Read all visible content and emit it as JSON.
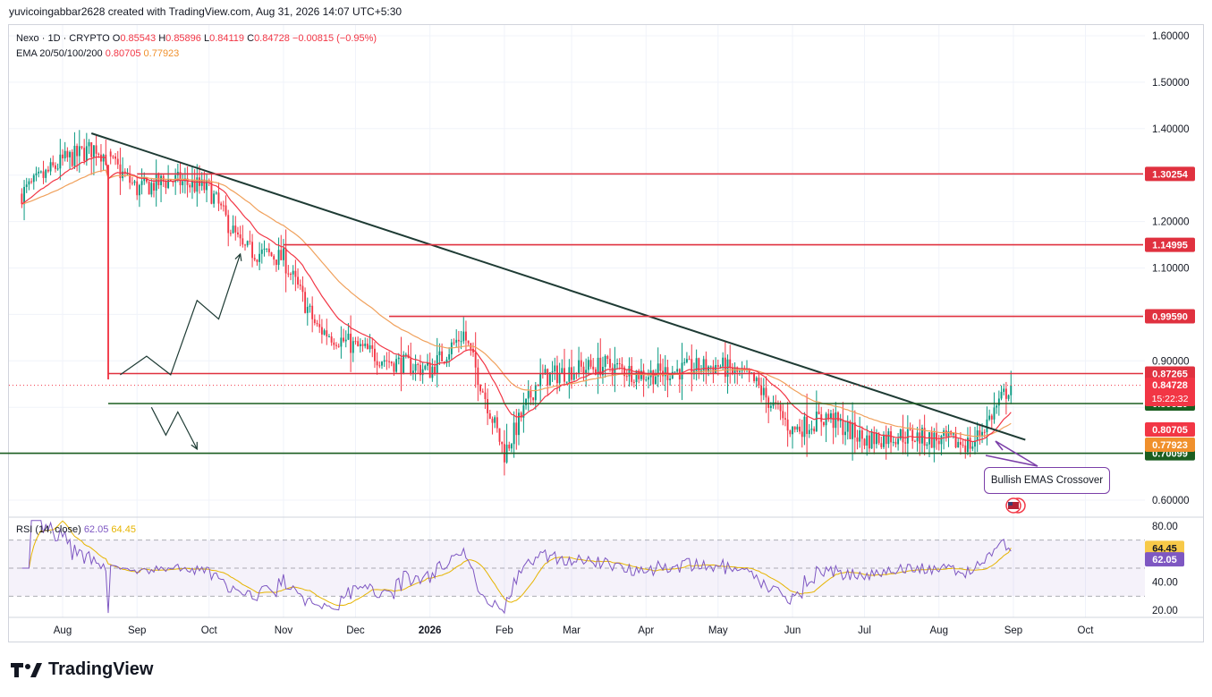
{
  "header": {
    "text": "yuvicoingabbar2628 created with TradingView.com, Aug 31, 2026 14:07 UTC+5:30"
  },
  "legend": {
    "symbol": "Nexo · 1D · CRYPTO",
    "o_label": "O",
    "o": "0.85543",
    "h_label": "H",
    "h": "0.85896",
    "l_label": "L",
    "l": "0.84119",
    "c_label": "C",
    "c": "0.84728",
    "change": "−0.00815 (−0.95%)",
    "ema_label": "EMA 20/50/100/200",
    "ema_fast": "0.80705",
    "ema_slow": "0.77923"
  },
  "rsi_legend": {
    "label": "RSI (14, close)",
    "value": "62.05",
    "ma": "64.45"
  },
  "annotation": {
    "text": "Bullish EMAS Crossover"
  },
  "footer": {
    "brand": "TradingView"
  },
  "colors": {
    "up": "#089981",
    "down": "#f23645",
    "resistance": "#e0313f",
    "support": "#1b5e20",
    "trendline": "#1e3b34",
    "ema_fast": "#f23645",
    "ema_slow": "#f0a15c",
    "rsi": "#7e57c2",
    "rsi_ma": "#e6b400",
    "annotation": "#7b3fa8"
  },
  "chart_data": [
    {
      "type": "candlestick",
      "title": "Nexo · 1D · CRYPTO",
      "x_tick_labels": [
        "Aug",
        "Sep",
        "Oct",
        "Nov",
        "Dec",
        "2026",
        "Feb",
        "Mar",
        "Apr",
        "May",
        "Jun",
        "Jul",
        "Aug",
        "Sep",
        "Oct"
      ],
      "y_tick_labels": [
        "1.60000",
        "1.50000",
        "1.40000",
        "1.20000",
        "1.10000",
        "0.90000",
        "0.60000"
      ],
      "ylim": [
        0.57,
        1.62
      ],
      "approx_closes": {
        "dates": [
          "Jul 15",
          "Aug 1",
          "Aug 15",
          "Sep 1",
          "Sep 15",
          "Oct 1",
          "Oct 15",
          "Nov 1",
          "Nov 15",
          "Dec 1",
          "Dec 15",
          "Jan 1",
          "Jan 15",
          "Feb 1",
          "Feb 15",
          "Mar 1",
          "Mar 15",
          "Apr 1",
          "Apr 15",
          "May 1",
          "May 15",
          "Jun 1",
          "Jun 15",
          "Jul 1",
          "Jul 15",
          "Aug 1",
          "Aug 15",
          "Aug 31"
        ],
        "values": [
          1.26,
          1.33,
          1.36,
          1.27,
          1.29,
          1.27,
          1.14,
          1.12,
          0.97,
          0.93,
          0.9,
          0.88,
          0.96,
          0.7,
          0.86,
          0.88,
          0.89,
          0.87,
          0.88,
          0.89,
          0.86,
          0.75,
          0.78,
          0.73,
          0.74,
          0.73,
          0.72,
          0.85
        ]
      },
      "ema_fast_value": 0.80705,
      "ema_slow_value": 0.77923,
      "horizontal_levels": [
        {
          "label": "1.30254",
          "value": 1.30254,
          "kind": "resistance"
        },
        {
          "label": "1.14995",
          "value": 1.14995,
          "kind": "resistance"
        },
        {
          "label": "0.99590",
          "value": 0.9959,
          "kind": "resistance"
        },
        {
          "label": "0.87265",
          "value": 0.87265,
          "kind": "resistance"
        },
        {
          "label": "0.80810",
          "value": 0.8081,
          "kind": "support"
        },
        {
          "label": "0.70099",
          "value": 0.70099,
          "kind": "support"
        }
      ],
      "last_price": {
        "label": "0.84728",
        "countdown": "15:22:32"
      },
      "trendline": {
        "from": [
          "Aug 13",
          1.39
        ],
        "to": [
          "Sep 3",
          0.73
        ]
      },
      "projections": {
        "bullish": [
          [
            "Aug 25",
            0.87
          ],
          [
            "Sep 5",
            0.91
          ],
          [
            "Sep 15",
            0.87
          ],
          [
            "Sep 26",
            1.03
          ],
          [
            "Oct 5",
            0.99
          ],
          [
            "Oct 14",
            1.13
          ]
        ],
        "bearish": [
          [
            "Sep 7",
            0.8
          ],
          [
            "Sep 13",
            0.74
          ],
          [
            "Sep 18",
            0.79
          ],
          [
            "Sep 26",
            0.71
          ]
        ]
      }
    },
    {
      "type": "line",
      "title": "RSI (14, close)",
      "y_tick_labels": [
        "80.00",
        "40.00",
        "20.00"
      ],
      "ylim": [
        15,
        85
      ],
      "bands": [
        30,
        70
      ],
      "series": [
        {
          "name": "RSI (14, close)",
          "last": 62.05
        },
        {
          "name": "RSI MA",
          "last": 64.45
        }
      ]
    }
  ]
}
